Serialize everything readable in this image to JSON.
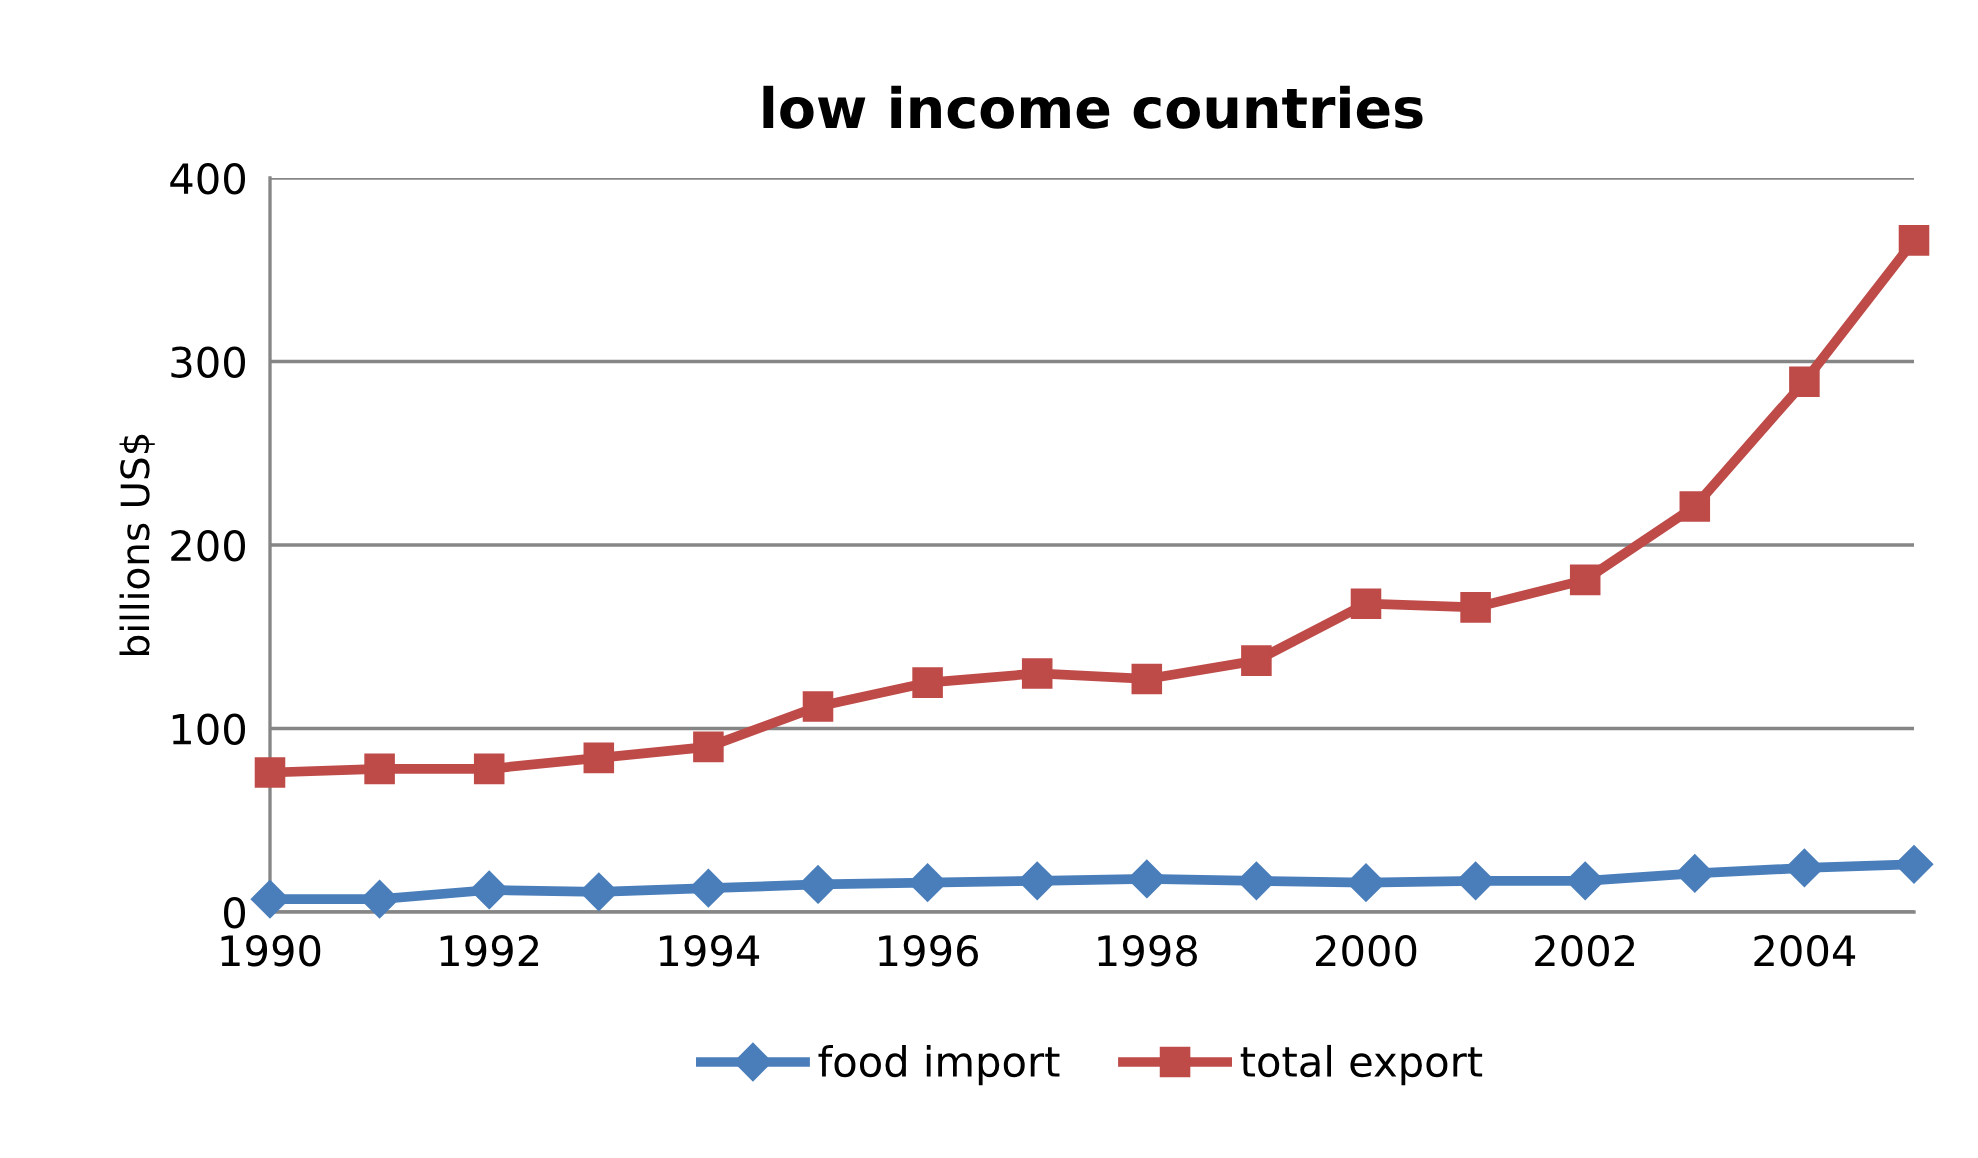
{
  "chart_data": {
    "type": "line",
    "title": "low income countries",
    "ylabel": "billions US$",
    "x": [
      1990,
      1991,
      1992,
      1993,
      1994,
      1995,
      1996,
      1997,
      1998,
      1999,
      2000,
      2001,
      2002,
      2003,
      2004,
      2005
    ],
    "series": [
      {
        "name": "food import",
        "color": "#4a7ebb",
        "marker": "diamond",
        "values": [
          7,
          7,
          12,
          11,
          13,
          15,
          16,
          17,
          18,
          17,
          16,
          17,
          17,
          21,
          24,
          26
        ]
      },
      {
        "name": "total export",
        "color": "#be4b48",
        "marker": "square",
        "values": [
          76,
          78,
          78,
          84,
          90,
          112,
          125,
          130,
          127,
          137,
          168,
          166,
          181,
          221,
          289,
          366
        ]
      }
    ],
    "xlim": [
      1990,
      2005
    ],
    "xticks": [
      1990,
      1992,
      1994,
      1996,
      1998,
      2000,
      2002,
      2004
    ],
    "ylim": [
      0,
      400
    ],
    "yticks": [
      0,
      100,
      200,
      300,
      400
    ],
    "grid": "y",
    "legend": "bottom",
    "line_style": "solid"
  }
}
